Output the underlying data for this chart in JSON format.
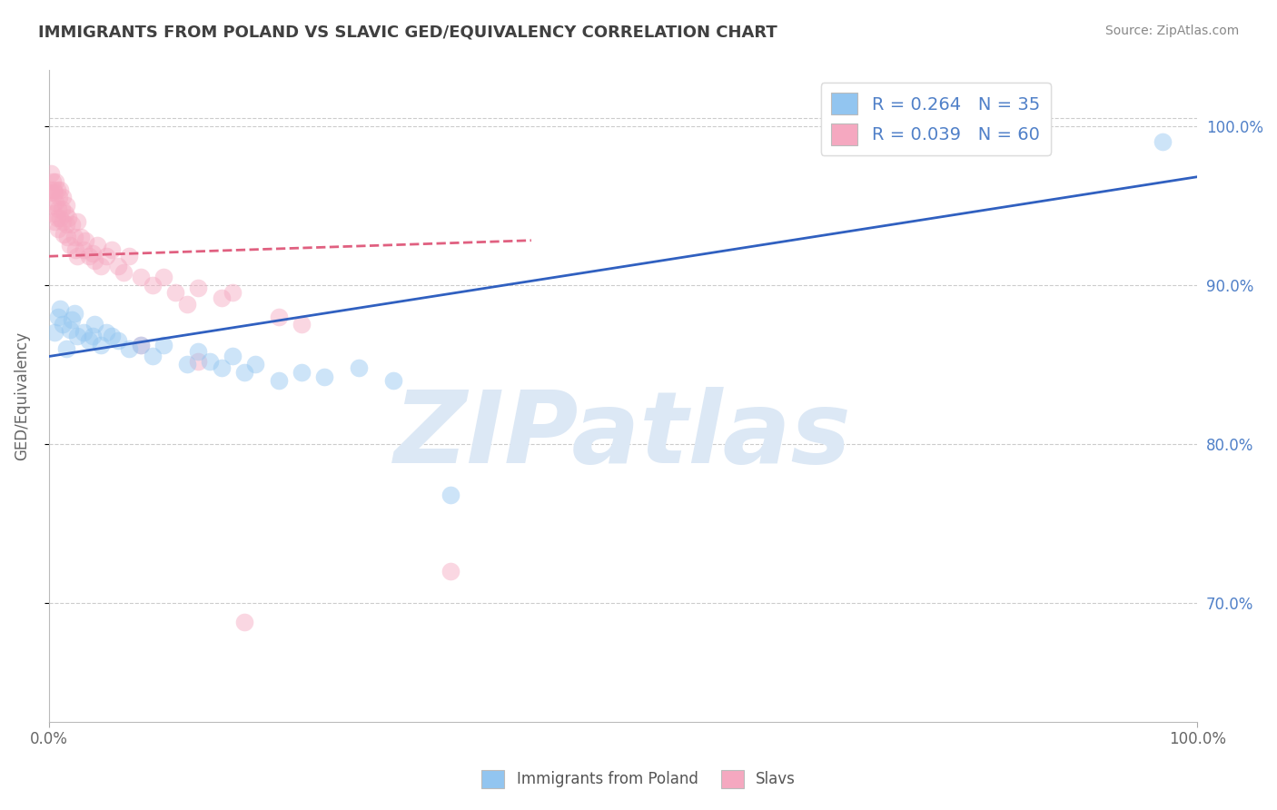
{
  "title": "IMMIGRANTS FROM POLAND VS SLAVIC GED/EQUIVALENCY CORRELATION CHART",
  "source_text": "Source: ZipAtlas.com",
  "ylabel": "GED/Equivalency",
  "watermark": "ZIPatlas",
  "legend_label_blue": "R = 0.264   N = 35",
  "legend_label_pink": "R = 0.039   N = 60",
  "legend_label_blue_short": "Immigrants from Poland",
  "legend_label_pink_short": "Slavs",
  "blue_color": "#92C5F0",
  "pink_color": "#F5A8C0",
  "trend_blue_color": "#3060C0",
  "trend_pink_color": "#E06080",
  "xmin": 0.0,
  "xmax": 1.0,
  "ymin": 0.625,
  "ymax": 1.035,
  "yticks": [
    0.7,
    0.8,
    0.9,
    1.0
  ],
  "ytick_labels": [
    "70.0%",
    "80.0%",
    "90.0%",
    "100.0%"
  ],
  "blue_scatter_x": [
    0.005,
    0.008,
    0.01,
    0.012,
    0.015,
    0.018,
    0.02,
    0.022,
    0.025,
    0.03,
    0.035,
    0.038,
    0.04,
    0.045,
    0.05,
    0.055,
    0.06,
    0.07,
    0.08,
    0.09,
    0.1,
    0.12,
    0.13,
    0.14,
    0.15,
    0.16,
    0.17,
    0.18,
    0.2,
    0.22,
    0.24,
    0.27,
    0.3,
    0.35,
    0.97
  ],
  "blue_scatter_y": [
    0.87,
    0.88,
    0.885,
    0.875,
    0.86,
    0.872,
    0.878,
    0.882,
    0.868,
    0.87,
    0.865,
    0.868,
    0.875,
    0.862,
    0.87,
    0.868,
    0.865,
    0.86,
    0.862,
    0.855,
    0.862,
    0.85,
    0.858,
    0.852,
    0.848,
    0.855,
    0.845,
    0.85,
    0.84,
    0.845,
    0.842,
    0.848,
    0.84,
    0.768,
    0.99
  ],
  "pink_scatter_x": [
    0.001,
    0.002,
    0.002,
    0.003,
    0.003,
    0.004,
    0.004,
    0.005,
    0.005,
    0.006,
    0.006,
    0.007,
    0.007,
    0.008,
    0.008,
    0.009,
    0.01,
    0.01,
    0.011,
    0.012,
    0.012,
    0.013,
    0.014,
    0.015,
    0.015,
    0.016,
    0.017,
    0.018,
    0.02,
    0.022,
    0.023,
    0.025,
    0.025,
    0.028,
    0.03,
    0.032,
    0.035,
    0.038,
    0.04,
    0.042,
    0.045,
    0.05,
    0.055,
    0.06,
    0.065,
    0.07,
    0.08,
    0.09,
    0.1,
    0.11,
    0.12,
    0.13,
    0.15,
    0.16,
    0.17,
    0.2,
    0.22,
    0.08,
    0.13,
    0.35
  ],
  "pink_scatter_y": [
    0.96,
    0.97,
    0.958,
    0.965,
    0.95,
    0.96,
    0.945,
    0.958,
    0.94,
    0.965,
    0.952,
    0.942,
    0.96,
    0.948,
    0.935,
    0.955,
    0.942,
    0.96,
    0.948,
    0.94,
    0.955,
    0.932,
    0.945,
    0.938,
    0.95,
    0.93,
    0.942,
    0.925,
    0.938,
    0.93,
    0.922,
    0.94,
    0.918,
    0.93,
    0.922,
    0.928,
    0.918,
    0.92,
    0.915,
    0.925,
    0.912,
    0.918,
    0.922,
    0.912,
    0.908,
    0.918,
    0.905,
    0.9,
    0.905,
    0.895,
    0.888,
    0.898,
    0.892,
    0.895,
    0.688,
    0.88,
    0.875,
    0.862,
    0.852,
    0.72
  ],
  "blue_trend_x": [
    0.0,
    1.0
  ],
  "blue_trend_y": [
    0.855,
    0.968
  ],
  "pink_trend_x": [
    0.0,
    0.42
  ],
  "pink_trend_y": [
    0.918,
    0.928
  ],
  "scatter_size": 200,
  "scatter_alpha": 0.45,
  "grid_color": "#CCCCCC",
  "background_color": "#FFFFFF",
  "title_color": "#404040",
  "watermark_color": "#DCE8F5",
  "watermark_fontsize": 80,
  "right_axis_color": "#5080C8"
}
